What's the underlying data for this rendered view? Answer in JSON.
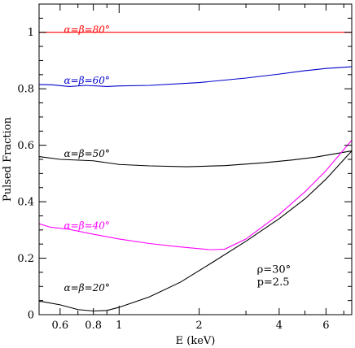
{
  "chart_data": {
    "type": "line",
    "xlabel": "E (keV)",
    "ylabel": "Pulsed Fraction",
    "xscale": "log",
    "xlim": [
      0.5,
      7.5
    ],
    "ylim": [
      0,
      1.1
    ],
    "x_ticks": [
      {
        "value": 0.6,
        "label": "0.6"
      },
      {
        "value": 0.8,
        "label": "0.8"
      },
      {
        "value": 1,
        "label": "1"
      },
      {
        "value": 2,
        "label": "2"
      },
      {
        "value": 4,
        "label": "4"
      },
      {
        "value": 6,
        "label": "6"
      }
    ],
    "y_ticks": [
      {
        "value": 0,
        "label": "0"
      },
      {
        "value": 0.2,
        "label": "0.2"
      },
      {
        "value": 0.4,
        "label": "0.4"
      },
      {
        "value": 0.6,
        "label": "0.6"
      },
      {
        "value": 0.8,
        "label": "0.8"
      },
      {
        "value": 1,
        "label": "1"
      }
    ],
    "grid": false,
    "legend": "none",
    "series": [
      {
        "label": "α=β=80°",
        "color": "#ff0000",
        "label_at": [
          0.62,
          1.01
        ],
        "points": [
          [
            0.5,
            1.0
          ],
          [
            7.5,
            1.0
          ]
        ]
      },
      {
        "label": "α=β=60°",
        "color": "#0000cc",
        "label_at": [
          0.62,
          0.83
        ],
        "points": [
          [
            0.5,
            0.815
          ],
          [
            0.56,
            0.814
          ],
          [
            0.65,
            0.808
          ],
          [
            0.75,
            0.812
          ],
          [
            0.9,
            0.808
          ],
          [
            1.0,
            0.81
          ],
          [
            1.3,
            0.812
          ],
          [
            2.0,
            0.822
          ],
          [
            3.0,
            0.838
          ],
          [
            4.0,
            0.852
          ],
          [
            5.0,
            0.864
          ],
          [
            6.0,
            0.872
          ],
          [
            7.5,
            0.878
          ]
        ]
      },
      {
        "label": "α=β=50°",
        "color": "#000000",
        "label_at": [
          0.62,
          0.57
        ],
        "points": [
          [
            0.5,
            0.56
          ],
          [
            0.6,
            0.55
          ],
          [
            0.8,
            0.545
          ],
          [
            1.0,
            0.532
          ],
          [
            1.3,
            0.527
          ],
          [
            1.8,
            0.524
          ],
          [
            2.5,
            0.528
          ],
          [
            3.5,
            0.538
          ],
          [
            4.5,
            0.548
          ],
          [
            5.5,
            0.558
          ],
          [
            6.5,
            0.57
          ],
          [
            7.5,
            0.58
          ]
        ]
      },
      {
        "label": "α=β=40°",
        "color": "#ff00ff",
        "label_at": [
          0.62,
          0.315
        ],
        "points": [
          [
            0.5,
            0.322
          ],
          [
            0.55,
            0.31
          ],
          [
            0.65,
            0.302
          ],
          [
            0.8,
            0.285
          ],
          [
            1.0,
            0.268
          ],
          [
            1.3,
            0.252
          ],
          [
            1.7,
            0.24
          ],
          [
            2.2,
            0.23
          ],
          [
            2.5,
            0.232
          ],
          [
            3.0,
            0.268
          ],
          [
            4.0,
            0.355
          ],
          [
            5.0,
            0.435
          ],
          [
            6.0,
            0.51
          ],
          [
            7.5,
            0.618
          ]
        ]
      },
      {
        "label": "α=β=20°",
        "color": "#000000",
        "label_at": [
          0.62,
          0.095
        ],
        "points": [
          [
            0.5,
            0.048
          ],
          [
            0.6,
            0.035
          ],
          [
            0.7,
            0.018
          ],
          [
            0.8,
            0.013
          ],
          [
            0.9,
            0.015
          ],
          [
            1.0,
            0.026
          ],
          [
            1.3,
            0.063
          ],
          [
            1.7,
            0.115
          ],
          [
            2.2,
            0.18
          ],
          [
            3.0,
            0.26
          ],
          [
            4.0,
            0.34
          ],
          [
            5.0,
            0.41
          ],
          [
            6.0,
            0.48
          ],
          [
            7.5,
            0.58
          ]
        ]
      }
    ],
    "annotations": [
      "ρ=30°",
      "p=2.5"
    ]
  }
}
